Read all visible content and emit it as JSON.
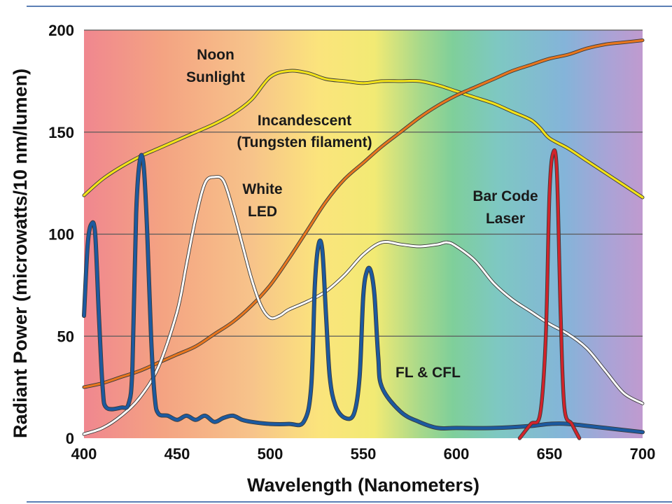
{
  "chart_data": {
    "type": "line",
    "xlabel": "Wavelength (Nanometers)",
    "ylabel": "Radiant Power (microwatts/10 nm/lumen)",
    "xlim": [
      400,
      700
    ],
    "ylim": [
      0,
      200
    ],
    "x_ticks": [
      400,
      450,
      500,
      550,
      600,
      650,
      700
    ],
    "y_ticks": [
      0,
      50,
      100,
      150,
      200
    ],
    "grid": "horizontal",
    "background": "visible spectrum gradient (violet-red 400 nm to violet 700 nm)",
    "annotations": [
      {
        "key": "noon1",
        "text": "Noon"
      },
      {
        "key": "noon2",
        "text": "Sunlight"
      },
      {
        "key": "inc1",
        "text": "Incandescent"
      },
      {
        "key": "inc2",
        "text": "(Tungsten filament)"
      },
      {
        "key": "led1",
        "text": "White"
      },
      {
        "key": "led2",
        "text": "LED"
      },
      {
        "key": "laser1",
        "text": "Bar Code"
      },
      {
        "key": "laser2",
        "text": "Laser"
      },
      {
        "key": "fl",
        "text": "FL & CFL"
      }
    ],
    "series": [
      {
        "key": "noon-sunlight-curve",
        "color": "#f2e21a",
        "points": [
          [
            400,
            119
          ],
          [
            410,
            127
          ],
          [
            420,
            133
          ],
          [
            430,
            138
          ],
          [
            440,
            142
          ],
          [
            450,
            146
          ],
          [
            460,
            150
          ],
          [
            470,
            154
          ],
          [
            480,
            159
          ],
          [
            490,
            166
          ],
          [
            500,
            177
          ],
          [
            510,
            180
          ],
          [
            520,
            179
          ],
          [
            530,
            176
          ],
          [
            540,
            175
          ],
          [
            550,
            174
          ],
          [
            560,
            175
          ],
          [
            570,
            175
          ],
          [
            580,
            175
          ],
          [
            590,
            173
          ],
          [
            600,
            170
          ],
          [
            610,
            167
          ],
          [
            620,
            164
          ],
          [
            630,
            160
          ],
          [
            640,
            156
          ],
          [
            645,
            152
          ],
          [
            650,
            147
          ],
          [
            660,
            142
          ],
          [
            670,
            136
          ],
          [
            680,
            130
          ],
          [
            690,
            124
          ],
          [
            700,
            118
          ]
        ]
      },
      {
        "key": "incandescent-curve",
        "color": "#e8761e",
        "points": [
          [
            400,
            25
          ],
          [
            410,
            27
          ],
          [
            420,
            30
          ],
          [
            430,
            33
          ],
          [
            440,
            37
          ],
          [
            450,
            41
          ],
          [
            460,
            45
          ],
          [
            470,
            51
          ],
          [
            480,
            57
          ],
          [
            490,
            65
          ],
          [
            500,
            75
          ],
          [
            510,
            88
          ],
          [
            520,
            102
          ],
          [
            530,
            116
          ],
          [
            540,
            127
          ],
          [
            550,
            135
          ],
          [
            560,
            143
          ],
          [
            570,
            150
          ],
          [
            580,
            157
          ],
          [
            590,
            163
          ],
          [
            600,
            168
          ],
          [
            610,
            172
          ],
          [
            620,
            176
          ],
          [
            630,
            180
          ],
          [
            640,
            183
          ],
          [
            650,
            186
          ],
          [
            660,
            188
          ],
          [
            670,
            191
          ],
          [
            680,
            193
          ],
          [
            690,
            194
          ],
          [
            700,
            195
          ]
        ]
      },
      {
        "key": "white-led-curve",
        "color": "#ffffff",
        "points": [
          [
            400,
            2
          ],
          [
            410,
            5
          ],
          [
            420,
            11
          ],
          [
            430,
            20
          ],
          [
            440,
            35
          ],
          [
            450,
            62
          ],
          [
            455,
            85
          ],
          [
            460,
            108
          ],
          [
            465,
            125
          ],
          [
            470,
            128
          ],
          [
            475,
            126
          ],
          [
            480,
            112
          ],
          [
            485,
            95
          ],
          [
            490,
            78
          ],
          [
            495,
            65
          ],
          [
            500,
            59
          ],
          [
            505,
            60
          ],
          [
            510,
            63
          ],
          [
            520,
            67
          ],
          [
            530,
            72
          ],
          [
            540,
            80
          ],
          [
            550,
            90
          ],
          [
            560,
            96
          ],
          [
            570,
            95
          ],
          [
            580,
            94
          ],
          [
            590,
            95
          ],
          [
            595,
            96
          ],
          [
            600,
            94
          ],
          [
            610,
            87
          ],
          [
            620,
            76
          ],
          [
            630,
            68
          ],
          [
            640,
            62
          ],
          [
            650,
            56
          ],
          [
            660,
            51
          ],
          [
            670,
            44
          ],
          [
            680,
            33
          ],
          [
            690,
            22
          ],
          [
            700,
            17
          ]
        ]
      },
      {
        "key": "fl-cfl-curve",
        "color": "#1c5aa0",
        "points": [
          [
            400,
            60
          ],
          [
            402,
            95
          ],
          [
            404,
            105
          ],
          [
            406,
            100
          ],
          [
            408,
            60
          ],
          [
            410,
            25
          ],
          [
            412,
            15
          ],
          [
            420,
            15
          ],
          [
            424,
            17
          ],
          [
            426,
            35
          ],
          [
            428,
            110
          ],
          [
            430,
            136
          ],
          [
            432,
            134
          ],
          [
            434,
            100
          ],
          [
            436,
            50
          ],
          [
            438,
            20
          ],
          [
            440,
            12
          ],
          [
            445,
            11
          ],
          [
            450,
            9
          ],
          [
            455,
            11
          ],
          [
            460,
            9
          ],
          [
            465,
            11
          ],
          [
            470,
            8
          ],
          [
            475,
            10
          ],
          [
            480,
            11
          ],
          [
            485,
            9
          ],
          [
            490,
            8
          ],
          [
            500,
            7
          ],
          [
            510,
            7
          ],
          [
            518,
            8
          ],
          [
            522,
            25
          ],
          [
            524,
            75
          ],
          [
            526,
            95
          ],
          [
            528,
            92
          ],
          [
            530,
            60
          ],
          [
            532,
            30
          ],
          [
            535,
            16
          ],
          [
            540,
            10
          ],
          [
            545,
            12
          ],
          [
            548,
            30
          ],
          [
            550,
            70
          ],
          [
            552,
            82
          ],
          [
            554,
            82
          ],
          [
            556,
            70
          ],
          [
            558,
            40
          ],
          [
            560,
            25
          ],
          [
            570,
            13
          ],
          [
            580,
            8
          ],
          [
            590,
            5
          ],
          [
            600,
            5
          ],
          [
            620,
            5
          ],
          [
            640,
            6
          ],
          [
            650,
            7
          ],
          [
            660,
            7
          ],
          [
            680,
            5
          ],
          [
            700,
            3
          ]
        ]
      },
      {
        "key": "bar-code-laser-curve",
        "color": "#d2232a",
        "points": [
          [
            634,
            0
          ],
          [
            640,
            7
          ],
          [
            645,
            12
          ],
          [
            648,
            50
          ],
          [
            650,
            120
          ],
          [
            652,
            140
          ],
          [
            654,
            130
          ],
          [
            656,
            60
          ],
          [
            658,
            15
          ],
          [
            662,
            7
          ],
          [
            666,
            0
          ]
        ]
      }
    ]
  }
}
